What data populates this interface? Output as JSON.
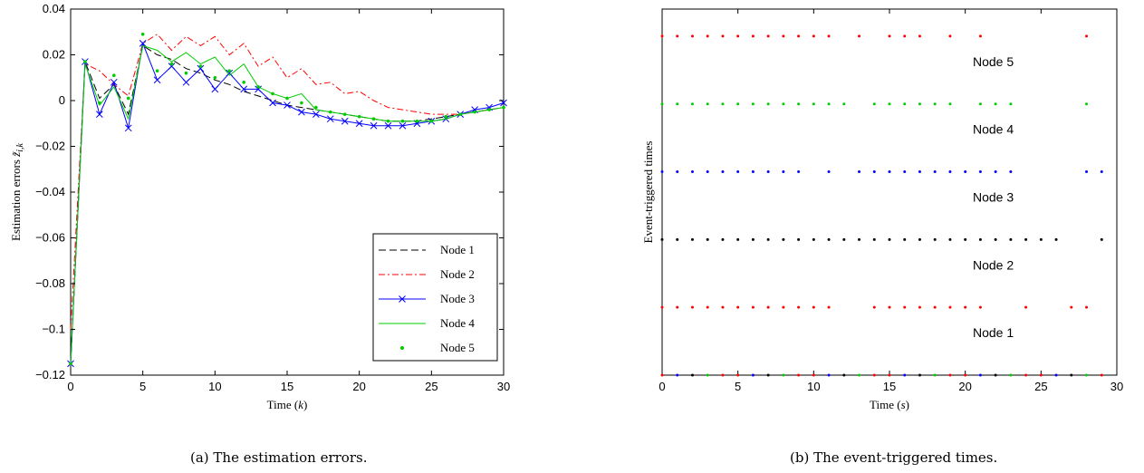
{
  "chart_data": [
    {
      "type": "line",
      "caption": "(a) The estimation errors.",
      "xlabel": "Time (k)",
      "ylabel": "Estimation errors z̃_{i,k}",
      "xlim": [
        0,
        30
      ],
      "ylim": [
        -0.12,
        0.04
      ],
      "xticks": [
        "0",
        "5",
        "10",
        "15",
        "20",
        "25",
        "30"
      ],
      "yticks": [
        "0.04",
        "0.02",
        "0",
        "−0.02",
        "−0.04",
        "−0.06",
        "−0.08",
        "−0.1",
        "−0.12"
      ],
      "legend_position": "bottom-right",
      "x": [
        0,
        1,
        2,
        3,
        4,
        5,
        6,
        7,
        8,
        9,
        10,
        11,
        12,
        13,
        14,
        15,
        16,
        17,
        18,
        19,
        20,
        21,
        22,
        23,
        24,
        25,
        26,
        27,
        28,
        29,
        30
      ],
      "series": [
        {
          "name": "Node 1",
          "color": "#000000",
          "style": "dashed",
          "values": [
            -0.115,
            0.017,
            0.001,
            0.007,
            -0.006,
            0.024,
            0.02,
            0.018,
            0.014,
            0.012,
            0.009,
            0.007,
            0.004,
            0.002,
            0.0,
            -0.002,
            -0.003,
            -0.004,
            -0.005,
            -0.006,
            -0.007,
            -0.008,
            -0.009,
            -0.009,
            -0.009,
            -0.008,
            -0.007,
            -0.006,
            -0.005,
            -0.004,
            -0.003
          ]
        },
        {
          "name": "Node 2",
          "color": "#ff0000",
          "style": "dashdot",
          "values": [
            -0.1,
            0.016,
            0.013,
            0.007,
            0.002,
            0.025,
            0.029,
            0.022,
            0.028,
            0.024,
            0.028,
            0.02,
            0.025,
            0.015,
            0.019,
            0.01,
            0.014,
            0.007,
            0.008,
            0.003,
            0.004,
            0.0,
            -0.003,
            -0.004,
            -0.005,
            -0.006,
            -0.006,
            -0.006,
            -0.005,
            -0.004,
            -0.003
          ]
        },
        {
          "name": "Node 3",
          "color": "#0000ff",
          "style": "solid-x",
          "values": [
            -0.115,
            0.017,
            -0.006,
            0.008,
            -0.012,
            0.025,
            0.009,
            0.015,
            0.008,
            0.014,
            0.005,
            0.012,
            0.005,
            0.005,
            -0.001,
            -0.002,
            -0.005,
            -0.006,
            -0.008,
            -0.009,
            -0.01,
            -0.011,
            -0.011,
            -0.011,
            -0.01,
            -0.009,
            -0.008,
            -0.006,
            -0.004,
            -0.003,
            -0.001
          ]
        },
        {
          "name": "Node 4",
          "color": "#00cc00",
          "style": "solid",
          "values": [
            -0.115,
            0.016,
            -0.002,
            0.006,
            -0.008,
            0.024,
            0.022,
            0.017,
            0.021,
            0.016,
            0.019,
            0.011,
            0.016,
            0.006,
            0.003,
            0.001,
            0.003,
            -0.004,
            -0.005,
            -0.006,
            -0.007,
            -0.008,
            -0.009,
            -0.009,
            -0.009,
            -0.009,
            -0.008,
            -0.006,
            -0.005,
            -0.004,
            -0.003
          ]
        },
        {
          "name": "Node 5",
          "color": "#00cc00",
          "style": "points",
          "values": [
            -0.115,
            0.017,
            -0.001,
            0.011,
            0.001,
            0.029,
            0.013,
            0.016,
            0.012,
            0.015,
            0.01,
            0.013,
            0.008,
            0.006,
            0.003,
            0.001,
            -0.001,
            -0.003,
            -0.005,
            -0.006,
            -0.007,
            -0.008,
            -0.009,
            -0.009,
            -0.009,
            -0.009,
            -0.007,
            -0.006,
            -0.005,
            -0.004,
            -0.003
          ]
        }
      ]
    },
    {
      "type": "scatter",
      "caption": "(b) The event-triggered times.",
      "xlabel": "Time (s)",
      "ylabel": "Event-triggered times",
      "xlim": [
        0,
        30
      ],
      "xticks": [
        "0",
        "5",
        "10",
        "15",
        "20",
        "25",
        "30"
      ],
      "rows": [
        {
          "name": "Node 5",
          "color": "#ff0000",
          "level": 5,
          "times": [
            0,
            1,
            2,
            3,
            4,
            5,
            6,
            7,
            8,
            9,
            10,
            11,
            13,
            15,
            16,
            17,
            19,
            21,
            28
          ]
        },
        {
          "name": "Node 4",
          "color": "#00cc00",
          "level": 4,
          "times": [
            0,
            1,
            2,
            3,
            4,
            5,
            6,
            7,
            8,
            9,
            10,
            11,
            12,
            14,
            15,
            16,
            17,
            18,
            19,
            21,
            22,
            23,
            28
          ]
        },
        {
          "name": "Node 3",
          "color": "#0000ff",
          "level": 3,
          "times": [
            0,
            1,
            2,
            3,
            4,
            5,
            6,
            7,
            8,
            9,
            11,
            13,
            14,
            15,
            16,
            17,
            18,
            19,
            20,
            21,
            22,
            23,
            28,
            29
          ]
        },
        {
          "name": "Node 2",
          "color": "#000000",
          "level": 2,
          "times": [
            0,
            1,
            2,
            3,
            4,
            5,
            6,
            7,
            8,
            9,
            10,
            11,
            12,
            13,
            14,
            15,
            16,
            17,
            18,
            19,
            20,
            21,
            22,
            23,
            24,
            25,
            26,
            29
          ]
        },
        {
          "name": "Node 1",
          "color": "#ff0000",
          "level": 1,
          "times": [
            0,
            1,
            2,
            3,
            4,
            5,
            6,
            7,
            8,
            9,
            10,
            11,
            14,
            15,
            16,
            17,
            18,
            19,
            20,
            21,
            24,
            27,
            28
          ]
        }
      ],
      "baseline_times": [
        0,
        1,
        2,
        3,
        4,
        5,
        6,
        7,
        8,
        9,
        10,
        11,
        12,
        13,
        14,
        15,
        16,
        17,
        18,
        19,
        20,
        21,
        22,
        23,
        24,
        25,
        26,
        27,
        28,
        29
      ]
    }
  ]
}
